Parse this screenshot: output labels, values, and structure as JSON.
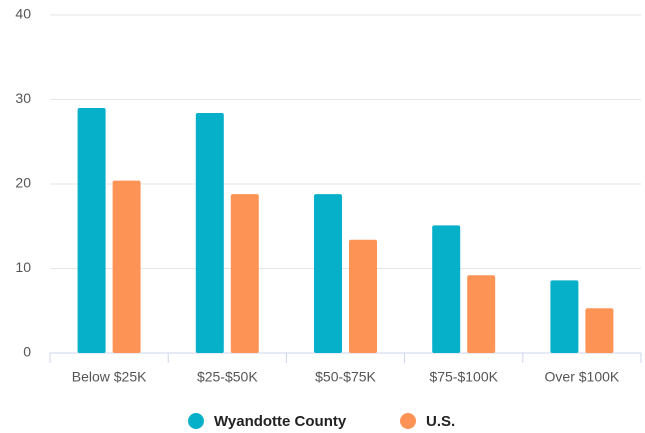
{
  "chart_data": {
    "type": "bar",
    "categories": [
      "Below $25K",
      "$25-$50K",
      "$50-$75K",
      "$75-$100K",
      "Over $100K"
    ],
    "series": [
      {
        "name": "Wyandotte County",
        "color": "#07b0c9",
        "values": [
          29.0,
          28.4,
          18.8,
          15.1,
          8.6
        ]
      },
      {
        "name": "U.S.",
        "color": "#fd9456",
        "values": [
          20.4,
          18.8,
          13.4,
          9.2,
          5.3
        ]
      }
    ],
    "ylim": [
      0,
      40
    ],
    "yticks": [
      0,
      10,
      20,
      30,
      40
    ],
    "grid": true,
    "legend": "bottom"
  }
}
